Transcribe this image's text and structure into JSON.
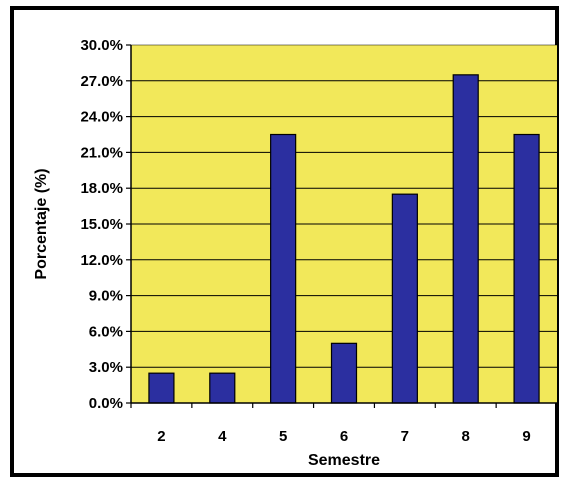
{
  "chart_data": {
    "type": "bar",
    "title": "",
    "xlabel": "Semestre",
    "ylabel": "Porcentaje (%)",
    "categories": [
      "2",
      "4",
      "5",
      "6",
      "7",
      "8",
      "9"
    ],
    "values": [
      2.5,
      2.5,
      22.5,
      5.0,
      17.5,
      27.5,
      22.5
    ],
    "ylim": [
      0,
      30
    ],
    "yticks": [
      "0.0%",
      "3.0%",
      "6.0%",
      "9.0%",
      "12.0%",
      "15.0%",
      "18.0%",
      "21.0%",
      "24.0%",
      "27.0%",
      "30.0%"
    ],
    "grid": true,
    "legend": "none",
    "colors": {
      "plot_background": "#F2E85A",
      "bar_fill": "#2B2FA0",
      "bar_stroke": "#000000",
      "gridline": "#000000"
    }
  }
}
